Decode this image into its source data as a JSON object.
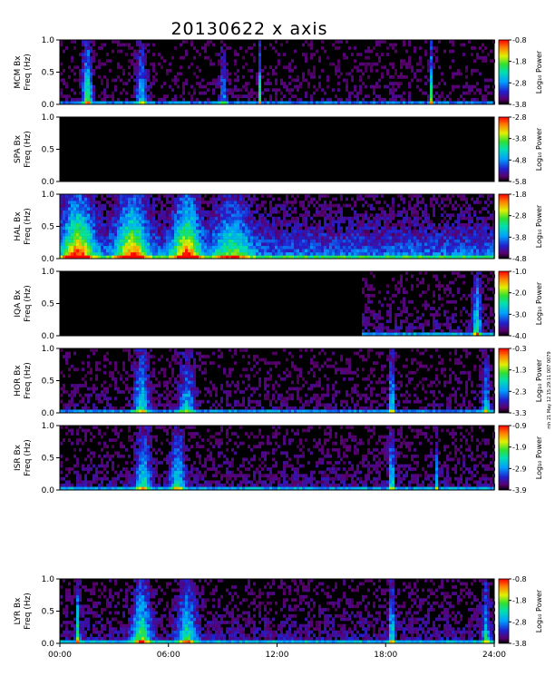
{
  "chart_data": {
    "type": "heatmap",
    "title": "20130622 x axis",
    "x": {
      "label": "",
      "range_hours": [
        0,
        24
      ],
      "tick_labels": [
        "00:00",
        "06:00",
        "12:00",
        "18:00",
        "24:00"
      ],
      "tick_values_hours": [
        0,
        6,
        12,
        18,
        24
      ]
    },
    "colorbar_label": "Log₁₀ Power",
    "side_note": "mh 21 May 12 15:29:11 007 0079",
    "panels": [
      {
        "station": "MCM",
        "ylabel_1": "MCM Bx",
        "ylabel_2": "Freq (Hz)",
        "ylim": [
          0,
          1
        ],
        "yticks": [
          "0.0",
          "0.5",
          "1.0"
        ],
        "cbar_ticks": [
          "-0.8",
          "-1.8",
          "-2.8",
          "-3.8"
        ],
        "cbar_range": [
          -3.8,
          -0.8
        ],
        "data_available": true,
        "data_start_hours": 0,
        "base_level": 0.05,
        "bursts": [
          [
            1.5,
            0.8,
            0.25
          ],
          [
            4.5,
            0.5,
            0.3
          ],
          [
            9.0,
            0.4,
            0.2
          ],
          [
            11.0,
            0.9,
            0.05
          ],
          [
            20.5,
            0.9,
            0.05
          ]
        ]
      },
      {
        "station": "SPA",
        "ylabel_1": "SPA Bx",
        "ylabel_2": "Freq (Hz)",
        "ylim": [
          0,
          1
        ],
        "yticks": [
          "0.0",
          "0.5",
          "1.0"
        ],
        "cbar_ticks": [
          "-2.8",
          "-3.8",
          "-4.8",
          "-5.8"
        ],
        "cbar_range": [
          -5.8,
          -2.8
        ],
        "data_available": false
      },
      {
        "station": "HAL",
        "ylabel_1": "HAL Bx",
        "ylabel_2": "Freq (Hz)",
        "ylim": [
          0,
          1
        ],
        "yticks": [
          "0.0",
          "0.5",
          "1.0"
        ],
        "cbar_ticks": [
          "-1.8",
          "-2.8",
          "-3.8",
          "-4.8"
        ],
        "cbar_range": [
          -4.8,
          -1.8
        ],
        "data_available": true,
        "data_start_hours": 0,
        "base_level": 0.35,
        "bursts": [
          [
            1.0,
            0.9,
            0.8
          ],
          [
            4.0,
            0.85,
            0.8
          ],
          [
            7.0,
            0.9,
            0.7
          ],
          [
            9.5,
            0.5,
            1.0
          ]
        ]
      },
      {
        "station": "IQA",
        "ylabel_1": "IQA Bx",
        "ylabel_2": "Freq (Hz)",
        "ylim": [
          0,
          1
        ],
        "yticks": [
          "0.0",
          "0.5",
          "1.0"
        ],
        "cbar_ticks": [
          "-1.0",
          "-2.0",
          "-3.0",
          "-4.0"
        ],
        "cbar_range": [
          -4.0,
          -1.0
        ],
        "data_available": true,
        "data_start_hours": 16.6,
        "base_level": 0.12,
        "bursts": [
          [
            23.0,
            0.7,
            0.2
          ]
        ]
      },
      {
        "station": "HOR",
        "ylabel_1": "HOR Bx",
        "ylabel_2": "Freq (Hz)",
        "ylim": [
          0,
          1
        ],
        "yticks": [
          "0.0",
          "0.5",
          "1.0"
        ],
        "cbar_ticks": [
          "-0.3",
          "-1.3",
          "-2.3",
          "-3.3"
        ],
        "cbar_range": [
          -3.3,
          -0.3
        ],
        "data_available": true,
        "data_start_hours": 0,
        "base_level": 0.08,
        "bursts": [
          [
            4.5,
            0.6,
            0.4
          ],
          [
            7.0,
            0.5,
            0.4
          ],
          [
            18.3,
            0.6,
            0.15
          ],
          [
            23.5,
            0.5,
            0.2
          ]
        ]
      },
      {
        "station": "ISR",
        "ylabel_1": "ISR Bx",
        "ylabel_2": "Freq (Hz)",
        "ylim": [
          0,
          1
        ],
        "yticks": [
          "0.0",
          "0.5",
          "1.0"
        ],
        "cbar_ticks": [
          "-0.9",
          "-1.9",
          "-2.9",
          "-3.9"
        ],
        "cbar_range": [
          -3.9,
          -0.9
        ],
        "data_available": true,
        "data_start_hours": 0,
        "base_level": 0.12,
        "bursts": [
          [
            4.6,
            0.6,
            0.4
          ],
          [
            6.5,
            0.55,
            0.4
          ],
          [
            18.3,
            0.6,
            0.15
          ],
          [
            20.8,
            0.5,
            0.05
          ]
        ]
      },
      {
        "station": "LYR",
        "ylabel_1": "LYR Bx",
        "ylabel_2": "Freq (Hz)",
        "ylim": [
          0,
          1
        ],
        "yticks": [
          "0.0",
          "0.5",
          "1.0"
        ],
        "cbar_ticks": [
          "-0.8",
          "-1.8",
          "-2.8",
          "-3.8"
        ],
        "cbar_range": [
          -3.8,
          -0.8
        ],
        "data_available": true,
        "data_start_hours": 0,
        "base_level": 0.15,
        "bursts": [
          [
            1.0,
            0.7,
            0.1
          ],
          [
            4.5,
            0.7,
            0.5
          ],
          [
            7.0,
            0.6,
            0.5
          ],
          [
            18.3,
            0.6,
            0.15
          ],
          [
            23.5,
            0.5,
            0.2
          ]
        ]
      }
    ]
  }
}
